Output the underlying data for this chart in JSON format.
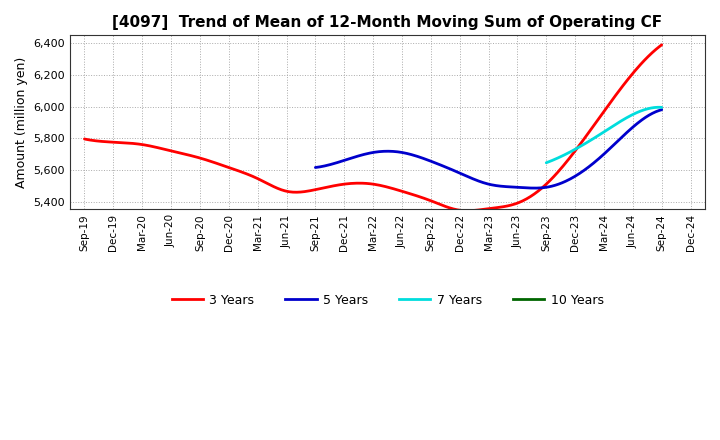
{
  "title": "[4097]  Trend of Mean of 12-Month Moving Sum of Operating CF",
  "ylabel": "Amount (million yen)",
  "ylim": [
    5350,
    6450
  ],
  "yticks": [
    5400,
    5600,
    5800,
    6000,
    6200,
    6400
  ],
  "background_color": "#ffffff",
  "grid_color": "#999999",
  "x_labels": [
    "Sep-19",
    "Dec-19",
    "Mar-20",
    "Jun-20",
    "Sep-20",
    "Dec-20",
    "Mar-21",
    "Jun-21",
    "Sep-21",
    "Dec-21",
    "Mar-22",
    "Jun-22",
    "Sep-22",
    "Dec-22",
    "Mar-23",
    "Jun-23",
    "Sep-23",
    "Dec-23",
    "Mar-24",
    "Jun-24",
    "Sep-24",
    "Dec-24"
  ],
  "series": {
    "3 Years": {
      "color": "#ff0000",
      "linewidth": 2.0,
      "values": [
        5795,
        5775,
        5760,
        5720,
        5675,
        5615,
        5545,
        5465,
        5475,
        5510,
        5510,
        5465,
        5405,
        5345,
        5355,
        5390,
        5510,
        5720,
        5970,
        6210,
        6390,
        null
      ]
    },
    "5 Years": {
      "color": "#0000cc",
      "linewidth": 2.0,
      "values": [
        null,
        null,
        null,
        null,
        null,
        null,
        null,
        null,
        5615,
        5660,
        5710,
        5710,
        5655,
        5580,
        5510,
        5490,
        5490,
        5560,
        5700,
        5870,
        5980,
        null
      ]
    },
    "7 Years": {
      "color": "#00dddd",
      "linewidth": 2.0,
      "values": [
        null,
        null,
        null,
        null,
        null,
        null,
        null,
        null,
        null,
        null,
        null,
        null,
        null,
        null,
        null,
        null,
        5645,
        5730,
        5840,
        5950,
        5995,
        null
      ]
    },
    "10 Years": {
      "color": "#006600",
      "linewidth": 2.0,
      "values": [
        null,
        null,
        null,
        null,
        null,
        null,
        null,
        null,
        null,
        null,
        null,
        null,
        null,
        null,
        null,
        null,
        null,
        null,
        null,
        null,
        null,
        null
      ]
    }
  },
  "legend_order": [
    "3 Years",
    "5 Years",
    "7 Years",
    "10 Years"
  ]
}
